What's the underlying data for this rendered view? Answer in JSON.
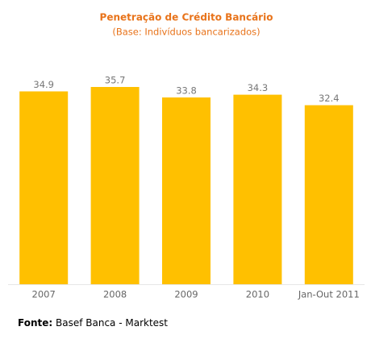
{
  "chart_data": {
    "type": "bar",
    "title": "Penetração de Crédito Bancário",
    "subtitle": "(Base: Indivíduos bancarizados)",
    "categories": [
      "2007",
      "2008",
      "2009",
      "2010",
      "Jan-Out 2011"
    ],
    "values": [
      34.9,
      35.7,
      33.8,
      34.3,
      32.4
    ],
    "color": "#ffc000"
  },
  "source": {
    "label": "Fonte:",
    "text": "Basef Banca - Marktest"
  }
}
